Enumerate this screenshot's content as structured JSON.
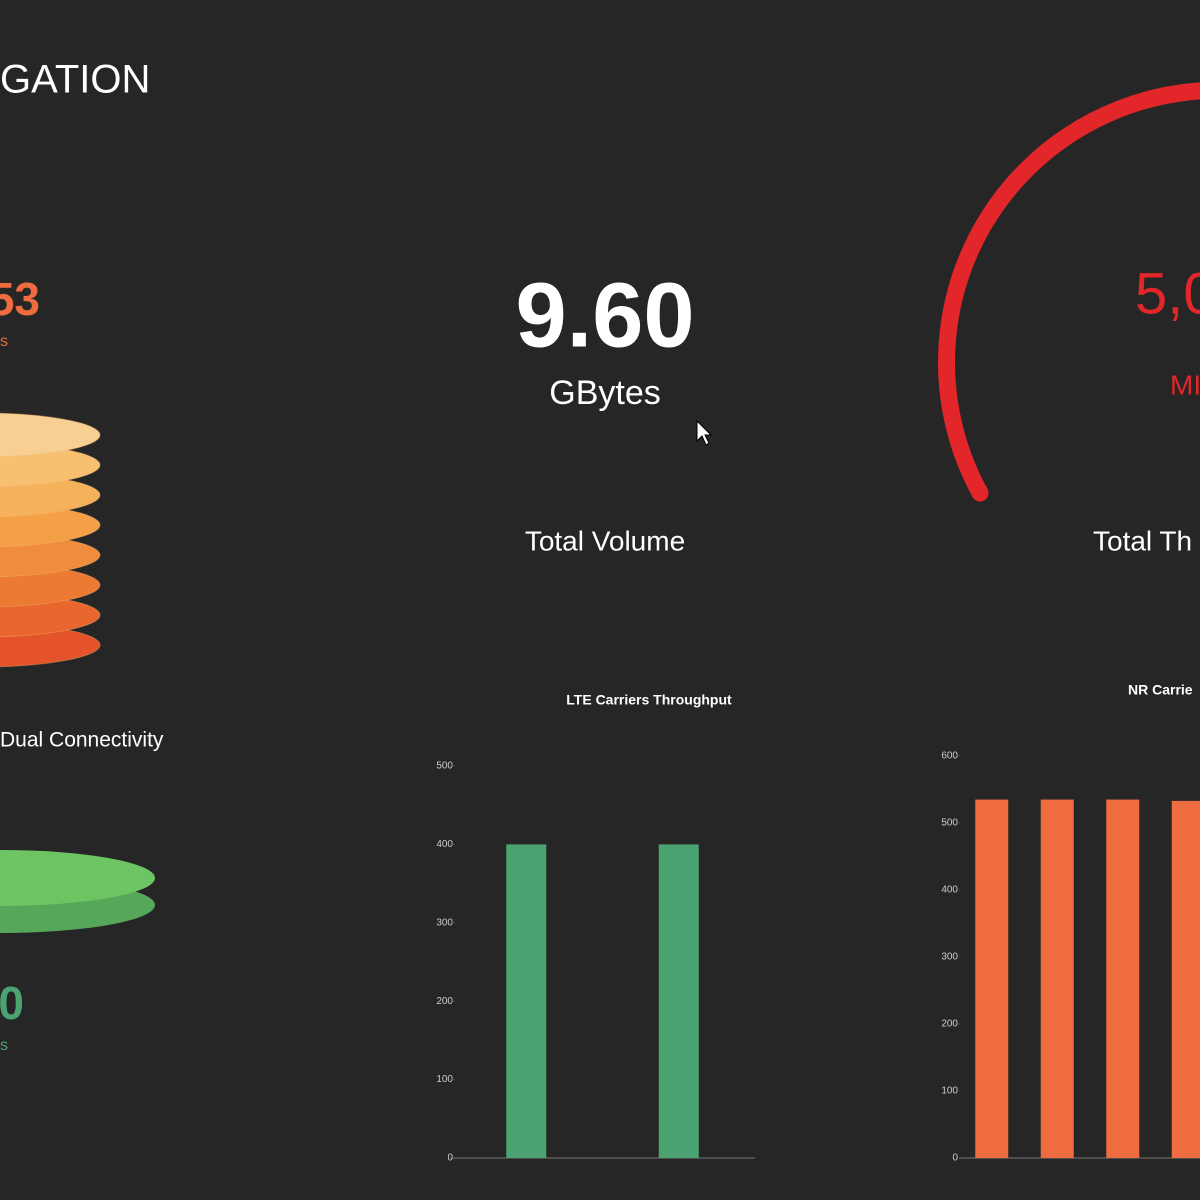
{
  "header": {
    "title": "GATION"
  },
  "panels": {
    "dual_connectivity": {
      "top_value": "53",
      "top_unit": "s",
      "label": "Dual Connectivity",
      "bottom_value": "0",
      "bottom_unit": "s"
    },
    "volume": {
      "value": "9.60",
      "unit": "GBytes",
      "label": "Total Volume"
    },
    "throughput": {
      "value": "5,0",
      "unit": "MI",
      "label": "Total Th"
    }
  },
  "charts": [
    {
      "type": "bar",
      "title": "LTE Carriers Throughput",
      "values": [
        400,
        400
      ],
      "color": "#4aa371",
      "ylim": [
        0,
        500
      ],
      "yticks": [
        0,
        100,
        200,
        300,
        400,
        500
      ]
    },
    {
      "type": "bar",
      "title": "NR Carrie",
      "values": [
        535,
        535,
        535,
        533
      ],
      "color": "#ee6c40",
      "ylim": [
        0,
        600
      ],
      "yticks": [
        0,
        100,
        200,
        300,
        400,
        500,
        600
      ]
    }
  ]
}
